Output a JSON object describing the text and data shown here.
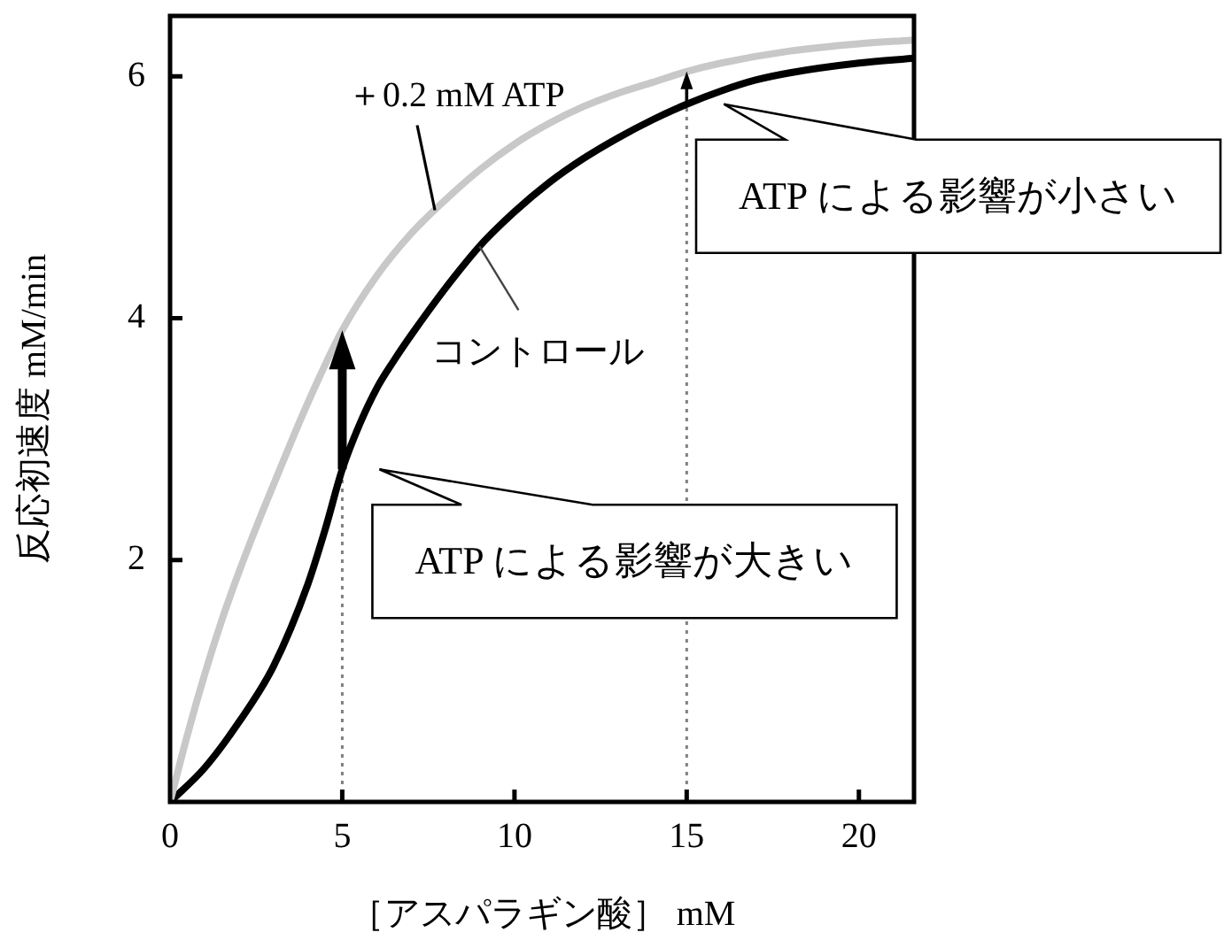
{
  "chart_data": {
    "type": "line",
    "xlabel": "［アスパラギン酸］ mM",
    "ylabel": "反応初速度 mM/min",
    "xlim": [
      0,
      21.6
    ],
    "xticks": [
      0,
      5,
      10,
      15,
      20
    ],
    "ylim": [
      0,
      6.5
    ],
    "yticks": [
      2,
      4,
      6
    ],
    "series": [
      {
        "name": "＋0.2 mM ATP",
        "color": "#c8c8c8",
        "x": [
          0,
          0.5,
          1,
          1.5,
          2,
          2.5,
          3,
          4,
          5,
          6,
          7,
          8,
          9,
          10,
          11,
          12,
          13,
          14,
          15,
          16,
          18,
          20,
          21.6
        ],
        "values": [
          0,
          0.55,
          1.05,
          1.5,
          1.9,
          2.27,
          2.62,
          3.3,
          3.9,
          4.35,
          4.7,
          4.98,
          5.23,
          5.44,
          5.61,
          5.75,
          5.86,
          5.95,
          6.04,
          6.11,
          6.21,
          6.27,
          6.3
        ]
      },
      {
        "name": "コントロール",
        "color": "#000000",
        "x": [
          0,
          1,
          2,
          3,
          4,
          4.5,
          5,
          5.5,
          6,
          6.5,
          7,
          8,
          9,
          10,
          11,
          12,
          13,
          14,
          15,
          16,
          17,
          18,
          20,
          21.6
        ],
        "values": [
          0,
          0.28,
          0.66,
          1.12,
          1.8,
          2.25,
          2.75,
          3.12,
          3.42,
          3.65,
          3.86,
          4.25,
          4.6,
          4.88,
          5.12,
          5.32,
          5.49,
          5.64,
          5.77,
          5.88,
          5.97,
          6.03,
          6.11,
          6.15
        ]
      }
    ],
    "ref_lines": [
      {
        "axis": "x",
        "value": 5,
        "line_style": "dotted",
        "color": "#808080"
      },
      {
        "axis": "x",
        "value": 15,
        "line_style": "dotted",
        "color": "#808080"
      }
    ],
    "annotations": [
      {
        "text": "ATP による影響が大きい",
        "x": 5,
        "y": 2.75
      },
      {
        "text": "ATP による影響が小さい",
        "x": 15,
        "y": 5.77
      }
    ],
    "legend": false,
    "grid": false,
    "marker": "none",
    "line_style": "solid"
  }
}
